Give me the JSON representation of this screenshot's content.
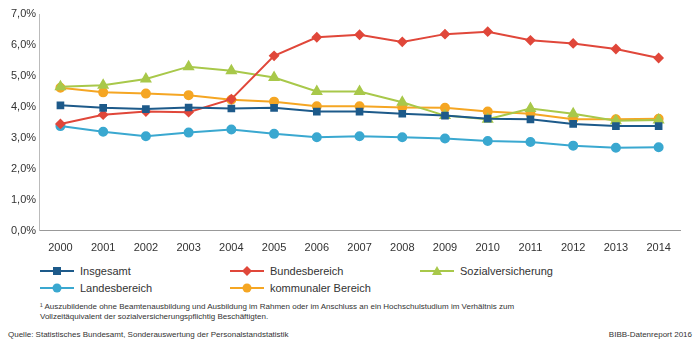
{
  "chart_data": {
    "type": "line",
    "categories": [
      "2000",
      "2001",
      "2002",
      "2003",
      "2004",
      "2005",
      "2006",
      "2007",
      "2008",
      "2009",
      "2010",
      "2011",
      "2012",
      "2013",
      "2014"
    ],
    "series": [
      {
        "name": "Insgesamt",
        "color": "#1d5a8a",
        "marker": "square",
        "values": [
          4.05,
          3.97,
          3.93,
          3.98,
          3.95,
          3.97,
          3.85,
          3.85,
          3.78,
          3.72,
          3.62,
          3.6,
          3.45,
          3.38,
          3.38
        ]
      },
      {
        "name": "Bundesbereich",
        "color": "#e0473a",
        "marker": "diamond",
        "values": [
          3.45,
          3.75,
          3.85,
          3.83,
          4.25,
          5.65,
          6.25,
          6.33,
          6.1,
          6.35,
          6.43,
          6.15,
          6.05,
          5.87,
          5.58
        ]
      },
      {
        "name": "Sozialversicherung",
        "color": "#a8c84a",
        "marker": "triangle",
        "values": [
          4.65,
          4.7,
          4.9,
          5.3,
          5.17,
          4.95,
          4.5,
          4.5,
          4.15,
          3.72,
          3.6,
          3.95,
          3.78,
          3.55,
          3.58
        ]
      },
      {
        "name": "Landesbereich",
        "color": "#3aa8d0",
        "marker": "circle",
        "values": [
          3.38,
          3.2,
          3.05,
          3.17,
          3.27,
          3.13,
          3.02,
          3.05,
          3.02,
          2.98,
          2.9,
          2.87,
          2.75,
          2.68,
          2.7
        ]
      },
      {
        "name": "kommunaler Bereich",
        "color": "#f5a623",
        "marker": "circle",
        "values": [
          4.62,
          4.47,
          4.43,
          4.38,
          4.23,
          4.17,
          4.02,
          4.02,
          3.98,
          3.97,
          3.85,
          3.78,
          3.6,
          3.6,
          3.62
        ]
      }
    ],
    "ylim": [
      0,
      7
    ],
    "yticks": [
      {
        "value": 0,
        "label": "0,0%"
      },
      {
        "value": 1,
        "label": "1,0%"
      },
      {
        "value": 2,
        "label": "2,0%"
      },
      {
        "value": 3,
        "label": "3,0%"
      },
      {
        "value": 4,
        "label": "4,0%"
      },
      {
        "value": 5,
        "label": "5,0%"
      },
      {
        "value": 6,
        "label": "6,0%"
      },
      {
        "value": 7,
        "label": "7,0%"
      }
    ],
    "grid": false,
    "legend": "bottom",
    "footnote": "¹ Auszubildende ohne Beamtenausbildung und Ausbildung im Rahmen oder im Anschluss an ein Hochschulstudium im Verhältnis zum Vollzeitäquivalent der sozialversicherungspflichtig Beschäftigten.",
    "source": "Quelle: Statistisches Bundesamt, Sonderauswertung der Personalstandstatistik",
    "credit": "BIBB-Datenreport 2016"
  }
}
